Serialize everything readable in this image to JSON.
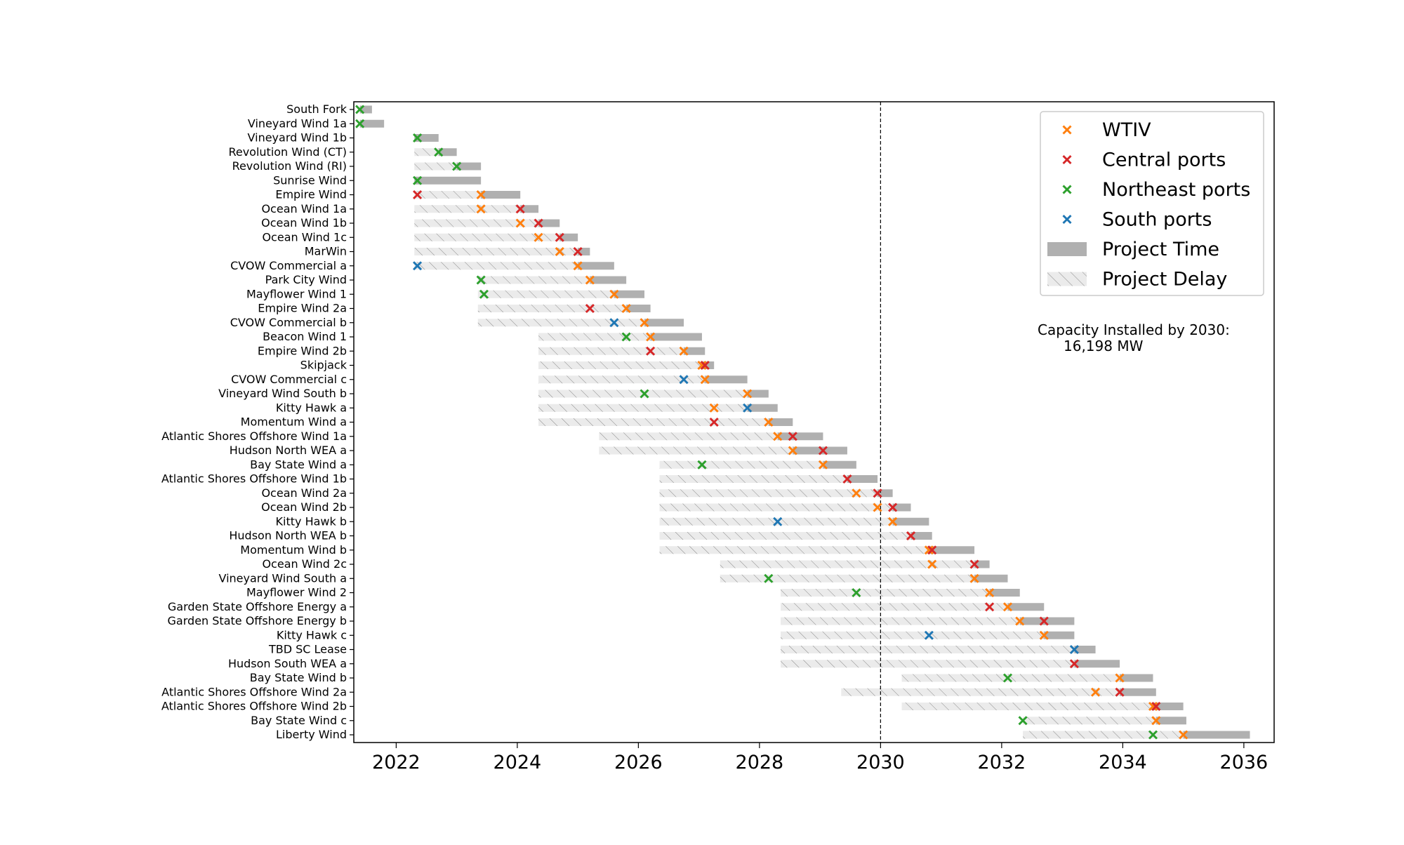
{
  "chart_data": {
    "type": "gantt",
    "xlim": [
      2021.3,
      2036.5
    ],
    "x_ticks": [
      2022,
      2024,
      2026,
      2028,
      2030,
      2032,
      2034,
      2036
    ],
    "vline_x": 2030,
    "legend": {
      "placement": "top-right",
      "entries": [
        {
          "key": "wtiv",
          "label": "WTIV",
          "color": "#ff7f0e",
          "kind": "marker"
        },
        {
          "key": "central",
          "label": "Central ports",
          "color": "#d62728",
          "kind": "marker"
        },
        {
          "key": "northeast",
          "label": "Northeast ports",
          "color": "#2ca02c",
          "kind": "marker"
        },
        {
          "key": "south",
          "label": "South ports",
          "color": "#1f77b4",
          "kind": "marker"
        },
        {
          "key": "time",
          "label": "Project Time",
          "color": "#b0b0b0",
          "kind": "bar"
        },
        {
          "key": "delay",
          "label": "Project Delay",
          "color": "#e6e6e6",
          "kind": "hatch"
        }
      ]
    },
    "annotation": {
      "line1": "Capacity Installed by 2030:",
      "line2": "16,198 MW"
    },
    "projects": [
      {
        "name": "South Fork",
        "delay_start": null,
        "start": 2021.4,
        "end": 2021.6,
        "markers": [
          {
            "x": 2021.4,
            "type": "northeast"
          }
        ]
      },
      {
        "name": "Vineyard Wind 1a",
        "delay_start": null,
        "start": 2021.4,
        "end": 2021.8,
        "markers": [
          {
            "x": 2021.4,
            "type": "northeast"
          }
        ]
      },
      {
        "name": "Vineyard Wind 1b",
        "delay_start": null,
        "start": 2022.3,
        "end": 2022.7,
        "markers": [
          {
            "x": 2022.35,
            "type": "northeast"
          }
        ]
      },
      {
        "name": "Revolution Wind (CT)",
        "delay_start": 2022.3,
        "start": 2022.7,
        "end": 2023.0,
        "markers": [
          {
            "x": 2022.7,
            "type": "northeast"
          }
        ]
      },
      {
        "name": "Revolution Wind (RI)",
        "delay_start": 2022.3,
        "start": 2023.0,
        "end": 2023.4,
        "markers": [
          {
            "x": 2023.0,
            "type": "northeast"
          }
        ]
      },
      {
        "name": "Sunrise Wind",
        "delay_start": null,
        "start": 2022.3,
        "end": 2023.4,
        "markers": [
          {
            "x": 2022.35,
            "type": "northeast"
          }
        ]
      },
      {
        "name": "Empire Wind",
        "delay_start": 2022.3,
        "start": 2023.4,
        "end": 2024.05,
        "markers": [
          {
            "x": 2022.35,
            "type": "central"
          },
          {
            "x": 2023.4,
            "type": "wtiv"
          }
        ]
      },
      {
        "name": "Ocean Wind 1a",
        "delay_start": 2022.3,
        "start": 2024.05,
        "end": 2024.35,
        "markers": [
          {
            "x": 2023.4,
            "type": "wtiv"
          },
          {
            "x": 2024.05,
            "type": "central"
          }
        ]
      },
      {
        "name": "Ocean Wind 1b",
        "delay_start": 2022.3,
        "start": 2024.35,
        "end": 2024.7,
        "markers": [
          {
            "x": 2024.05,
            "type": "wtiv"
          },
          {
            "x": 2024.35,
            "type": "central"
          }
        ]
      },
      {
        "name": "Ocean Wind 1c",
        "delay_start": 2022.3,
        "start": 2024.7,
        "end": 2025.0,
        "markers": [
          {
            "x": 2024.35,
            "type": "wtiv"
          },
          {
            "x": 2024.7,
            "type": "central"
          }
        ]
      },
      {
        "name": "MarWin",
        "delay_start": 2022.3,
        "start": 2025.0,
        "end": 2025.2,
        "markers": [
          {
            "x": 2024.7,
            "type": "wtiv"
          },
          {
            "x": 2025.0,
            "type": "central"
          }
        ]
      },
      {
        "name": "CVOW Commercial a",
        "delay_start": 2022.3,
        "start": 2025.0,
        "end": 2025.6,
        "markers": [
          {
            "x": 2022.35,
            "type": "south"
          },
          {
            "x": 2025.0,
            "type": "wtiv"
          }
        ]
      },
      {
        "name": "Park City Wind",
        "delay_start": 2023.35,
        "start": 2025.2,
        "end": 2025.8,
        "markers": [
          {
            "x": 2023.4,
            "type": "northeast"
          },
          {
            "x": 2025.2,
            "type": "wtiv"
          }
        ]
      },
      {
        "name": "Mayflower Wind 1",
        "delay_start": 2023.35,
        "start": 2025.6,
        "end": 2026.1,
        "markers": [
          {
            "x": 2023.45,
            "type": "northeast"
          },
          {
            "x": 2025.6,
            "type": "wtiv"
          }
        ]
      },
      {
        "name": "Empire Wind 2a",
        "delay_start": 2023.35,
        "start": 2025.8,
        "end": 2026.2,
        "markers": [
          {
            "x": 2025.2,
            "type": "central"
          },
          {
            "x": 2025.8,
            "type": "wtiv"
          }
        ]
      },
      {
        "name": "CVOW Commercial b",
        "delay_start": 2023.35,
        "start": 2026.1,
        "end": 2026.75,
        "markers": [
          {
            "x": 2025.6,
            "type": "south"
          },
          {
            "x": 2026.1,
            "type": "wtiv"
          }
        ]
      },
      {
        "name": "Beacon Wind 1",
        "delay_start": 2024.35,
        "start": 2026.2,
        "end": 2027.05,
        "markers": [
          {
            "x": 2025.8,
            "type": "northeast"
          },
          {
            "x": 2026.2,
            "type": "wtiv"
          }
        ]
      },
      {
        "name": "Empire Wind 2b",
        "delay_start": 2024.35,
        "start": 2026.75,
        "end": 2027.1,
        "markers": [
          {
            "x": 2026.2,
            "type": "central"
          },
          {
            "x": 2026.75,
            "type": "wtiv"
          }
        ]
      },
      {
        "name": "Skipjack",
        "delay_start": 2024.35,
        "start": 2027.05,
        "end": 2027.25,
        "markers": [
          {
            "x": 2027.05,
            "type": "wtiv"
          },
          {
            "x": 2027.1,
            "type": "central"
          }
        ]
      },
      {
        "name": "CVOW Commercial c",
        "delay_start": 2024.35,
        "start": 2027.1,
        "end": 2027.8,
        "markers": [
          {
            "x": 2026.75,
            "type": "south"
          },
          {
            "x": 2027.1,
            "type": "wtiv"
          }
        ]
      },
      {
        "name": "Vineyard Wind South b",
        "delay_start": 2024.35,
        "start": 2027.8,
        "end": 2028.15,
        "markers": [
          {
            "x": 2026.1,
            "type": "northeast"
          },
          {
            "x": 2027.8,
            "type": "wtiv"
          }
        ]
      },
      {
        "name": "Kitty Hawk a",
        "delay_start": 2024.35,
        "start": 2027.8,
        "end": 2028.3,
        "markers": [
          {
            "x": 2027.25,
            "type": "wtiv"
          },
          {
            "x": 2027.8,
            "type": "south"
          }
        ]
      },
      {
        "name": "Momentum Wind a",
        "delay_start": 2024.35,
        "start": 2028.15,
        "end": 2028.55,
        "markers": [
          {
            "x": 2027.25,
            "type": "central"
          },
          {
            "x": 2028.15,
            "type": "wtiv"
          }
        ]
      },
      {
        "name": "Atlantic Shores Offshore Wind 1a",
        "delay_start": 2025.35,
        "start": 2028.3,
        "end": 2029.05,
        "markers": [
          {
            "x": 2028.3,
            "type": "wtiv"
          },
          {
            "x": 2028.55,
            "type": "central"
          }
        ]
      },
      {
        "name": "Hudson North WEA a",
        "delay_start": 2025.35,
        "start": 2028.55,
        "end": 2029.45,
        "markers": [
          {
            "x": 2028.55,
            "type": "wtiv"
          },
          {
            "x": 2029.05,
            "type": "central"
          }
        ]
      },
      {
        "name": "Bay State Wind a",
        "delay_start": 2026.35,
        "start": 2029.05,
        "end": 2029.6,
        "markers": [
          {
            "x": 2027.05,
            "type": "northeast"
          },
          {
            "x": 2029.05,
            "type": "wtiv"
          }
        ]
      },
      {
        "name": "Atlantic Shores Offshore Wind 1b",
        "delay_start": 2026.35,
        "start": 2029.45,
        "end": 2029.95,
        "markers": [
          {
            "x": 2029.45,
            "type": "central"
          }
        ]
      },
      {
        "name": "Ocean Wind 2a",
        "delay_start": 2026.35,
        "start": 2029.95,
        "end": 2030.2,
        "markers": [
          {
            "x": 2029.6,
            "type": "wtiv"
          },
          {
            "x": 2029.95,
            "type": "central"
          }
        ]
      },
      {
        "name": "Ocean Wind 2b",
        "delay_start": 2026.35,
        "start": 2030.2,
        "end": 2030.5,
        "markers": [
          {
            "x": 2029.95,
            "type": "wtiv"
          },
          {
            "x": 2030.2,
            "type": "central"
          }
        ]
      },
      {
        "name": "Kitty Hawk b",
        "delay_start": 2026.35,
        "start": 2030.2,
        "end": 2030.8,
        "markers": [
          {
            "x": 2028.3,
            "type": "south"
          },
          {
            "x": 2030.2,
            "type": "wtiv"
          }
        ]
      },
      {
        "name": "Hudson North WEA b",
        "delay_start": 2026.35,
        "start": 2030.5,
        "end": 2030.85,
        "markers": [
          {
            "x": 2030.5,
            "type": "central"
          }
        ]
      },
      {
        "name": "Momentum Wind b",
        "delay_start": 2026.35,
        "start": 2030.8,
        "end": 2031.55,
        "markers": [
          {
            "x": 2030.8,
            "type": "wtiv"
          },
          {
            "x": 2030.85,
            "type": "central"
          }
        ]
      },
      {
        "name": "Ocean Wind 2c",
        "delay_start": 2027.35,
        "start": 2031.55,
        "end": 2031.8,
        "markers": [
          {
            "x": 2030.85,
            "type": "wtiv"
          },
          {
            "x": 2031.55,
            "type": "central"
          }
        ]
      },
      {
        "name": "Vineyard Wind South a",
        "delay_start": 2027.35,
        "start": 2031.55,
        "end": 2032.1,
        "markers": [
          {
            "x": 2028.15,
            "type": "northeast"
          },
          {
            "x": 2031.55,
            "type": "wtiv"
          }
        ]
      },
      {
        "name": "Mayflower Wind 2",
        "delay_start": 2028.35,
        "start": 2031.8,
        "end": 2032.3,
        "markers": [
          {
            "x": 2029.6,
            "type": "northeast"
          },
          {
            "x": 2031.8,
            "type": "wtiv"
          }
        ]
      },
      {
        "name": "Garden State Offshore Energy a",
        "delay_start": 2028.35,
        "start": 2032.1,
        "end": 2032.7,
        "markers": [
          {
            "x": 2031.8,
            "type": "central"
          },
          {
            "x": 2032.1,
            "type": "wtiv"
          }
        ]
      },
      {
        "name": "Garden State Offshore Energy b",
        "delay_start": 2028.35,
        "start": 2032.3,
        "end": 2033.2,
        "markers": [
          {
            "x": 2032.3,
            "type": "wtiv"
          },
          {
            "x": 2032.7,
            "type": "central"
          }
        ]
      },
      {
        "name": "Kitty Hawk c",
        "delay_start": 2028.35,
        "start": 2032.7,
        "end": 2033.2,
        "markers": [
          {
            "x": 2030.8,
            "type": "south"
          },
          {
            "x": 2032.7,
            "type": "wtiv"
          }
        ]
      },
      {
        "name": "TBD SC Lease",
        "delay_start": 2028.35,
        "start": 2033.2,
        "end": 2033.55,
        "markers": [
          {
            "x": 2033.2,
            "type": "south"
          }
        ]
      },
      {
        "name": "Hudson South WEA a",
        "delay_start": 2028.35,
        "start": 2033.2,
        "end": 2033.95,
        "markers": [
          {
            "x": 2033.2,
            "type": "central"
          }
        ]
      },
      {
        "name": "Bay State Wind b",
        "delay_start": 2030.35,
        "start": 2033.95,
        "end": 2034.5,
        "markers": [
          {
            "x": 2032.1,
            "type": "northeast"
          },
          {
            "x": 2033.95,
            "type": "wtiv"
          }
        ]
      },
      {
        "name": "Atlantic Shores Offshore Wind 2a",
        "delay_start": 2029.35,
        "start": 2033.95,
        "end": 2034.55,
        "markers": [
          {
            "x": 2033.55,
            "type": "wtiv"
          },
          {
            "x": 2033.95,
            "type": "central"
          }
        ]
      },
      {
        "name": "Atlantic Shores Offshore Wind 2b",
        "delay_start": 2030.35,
        "start": 2034.5,
        "end": 2035.0,
        "markers": [
          {
            "x": 2034.5,
            "type": "wtiv"
          },
          {
            "x": 2034.55,
            "type": "central"
          }
        ]
      },
      {
        "name": "Bay State Wind c",
        "delay_start": 2032.35,
        "start": 2034.55,
        "end": 2035.05,
        "markers": [
          {
            "x": 2032.35,
            "type": "northeast"
          },
          {
            "x": 2034.55,
            "type": "wtiv"
          }
        ]
      },
      {
        "name": "Liberty Wind",
        "delay_start": 2032.35,
        "start": 2035.0,
        "end": 2036.1,
        "markers": [
          {
            "x": 2034.5,
            "type": "northeast"
          },
          {
            "x": 2035.0,
            "type": "wtiv"
          }
        ]
      }
    ]
  }
}
